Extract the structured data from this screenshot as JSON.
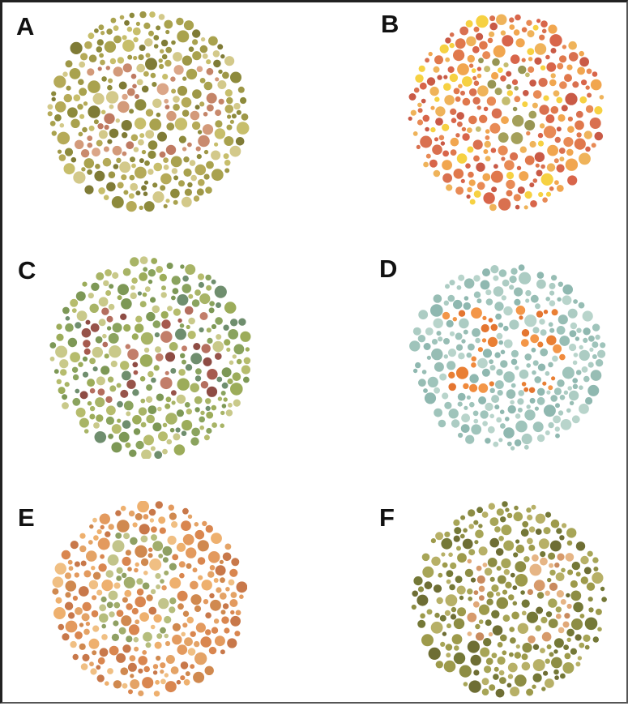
{
  "plates": [
    {
      "id": "A",
      "label": "A",
      "background_colors": [
        "#a9a24e",
        "#8d8a3c",
        "#c7be6b",
        "#b5aa58",
        "#7f7b36",
        "#d3c98a",
        "#9e9747"
      ],
      "figure_colors": [
        "#c98a6e",
        "#d39a7a",
        "#bf7a62",
        "#dba688",
        "#c48468"
      ],
      "figure_shape": "twenty-nine"
    },
    {
      "id": "B",
      "label": "B",
      "background_colors": [
        "#d9704f",
        "#e88a55",
        "#c95a46",
        "#f1a64f",
        "#e0784c",
        "#f6d142",
        "#d8654a",
        "#efb35a"
      ],
      "figure_colors": [
        "#a4a05a",
        "#b3ad62",
        "#979553",
        "#c4bc6f"
      ],
      "figure_shape": "faint-mark"
    },
    {
      "id": "C",
      "label": "C",
      "background_colors": [
        "#9cac5a",
        "#b6bc6d",
        "#7d9856",
        "#c9c98a",
        "#6f8e6e",
        "#a8b466",
        "#8aa35e"
      ],
      "figure_colors": [
        "#a65a4e",
        "#b46e5e",
        "#97534a",
        "#c27e6a",
        "#8e4c44"
      ],
      "figure_shape": "fifty-six"
    },
    {
      "id": "D",
      "label": "D",
      "background_colors": [
        "#9fc4bb",
        "#8fb8b0",
        "#acccc3",
        "#b8d4cb",
        "#97bdb4"
      ],
      "figure_colors": [
        "#f08a3c",
        "#e97f34",
        "#f39648",
        "#e47530"
      ],
      "figure_shape": "twenty-five"
    },
    {
      "id": "E",
      "label": "E",
      "background_colors": [
        "#e39a5e",
        "#d9864f",
        "#eeb06e",
        "#c8784a",
        "#f0bf83",
        "#e4a366",
        "#d0894f"
      ],
      "figure_colors": [
        "#a2ad6c",
        "#b5bd7c",
        "#8fa063",
        "#c2c48a"
      ],
      "figure_shape": "eight"
    },
    {
      "id": "F",
      "label": "F",
      "background_colors": [
        "#8d8d44",
        "#a7a557",
        "#747837",
        "#b7b067",
        "#9d9a4b",
        "#6e6e34"
      ],
      "figure_colors": [
        "#d79a6b",
        "#e0a878",
        "#c98a5e",
        "#e6b585"
      ],
      "figure_shape": "fifteen"
    }
  ]
}
